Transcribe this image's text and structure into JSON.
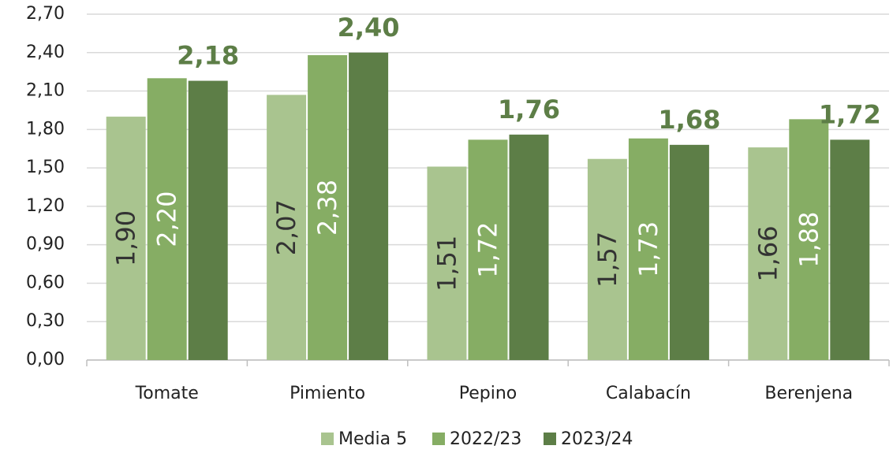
{
  "chart_data": {
    "type": "bar",
    "categories": [
      "Tomate",
      "Pimiento",
      "Pepino",
      "Calabacín",
      "Berenjena"
    ],
    "series": [
      {
        "name": "Media 5",
        "color": "#a9c48f",
        "values": [
          1.9,
          2.07,
          1.51,
          1.57,
          1.66
        ],
        "value_labels": [
          "1,90",
          "2,07",
          "1,51",
          "1,57",
          "1,66"
        ]
      },
      {
        "name": "2022/23",
        "color": "#86ad64",
        "values": [
          2.2,
          2.38,
          1.72,
          1.73,
          1.88
        ],
        "value_labels": [
          "2,20",
          "2,38",
          "1,72",
          "1,73",
          "1,88"
        ]
      },
      {
        "name": "2023/24",
        "color": "#5d7e47",
        "values": [
          2.18,
          2.4,
          1.76,
          1.68,
          1.72
        ],
        "value_labels": [
          "2,18",
          "2,40",
          "1,76",
          "1,68",
          "1,72"
        ]
      }
    ],
    "ylim": [
      0,
      2.7
    ],
    "yticks": [
      {
        "value": 0,
        "label": "0,00"
      },
      {
        "value": 0.3,
        "label": "0,30"
      },
      {
        "value": 0.6,
        "label": "0,60"
      },
      {
        "value": 0.9,
        "label": "0,90"
      },
      {
        "value": 1.2,
        "label": "1,20"
      },
      {
        "value": 1.5,
        "label": "1,50"
      },
      {
        "value": 1.8,
        "label": "1,80"
      },
      {
        "value": 2.1,
        "label": "2,10"
      },
      {
        "value": 2.4,
        "label": "2,40"
      },
      {
        "value": 2.7,
        "label": "2,70"
      }
    ],
    "grid": true,
    "legend": "bottom"
  }
}
